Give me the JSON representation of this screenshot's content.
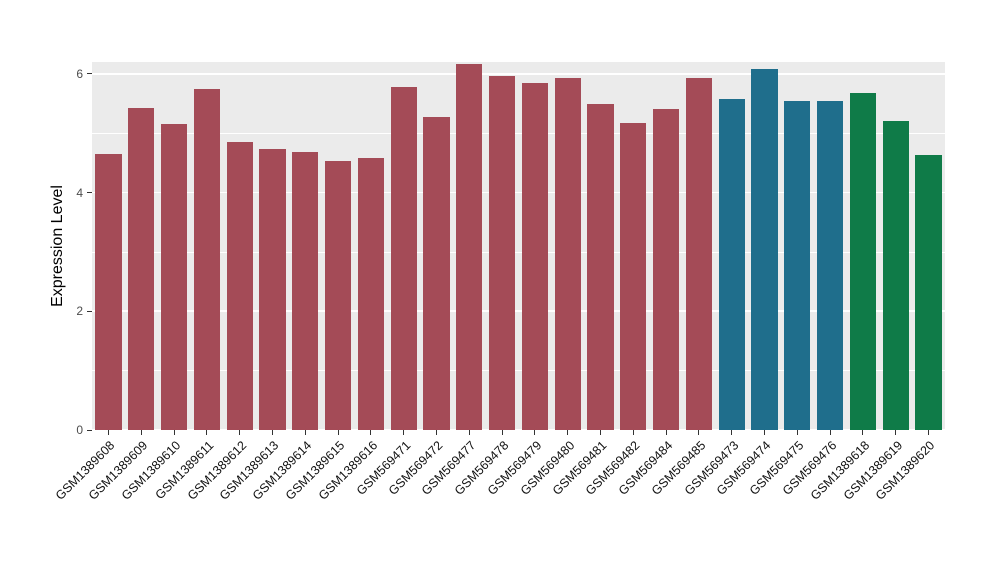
{
  "chart_data": {
    "type": "bar",
    "title": "",
    "xlabel": "",
    "ylabel": "Expression Level",
    "ylim": [
      0,
      6.2
    ],
    "yticks": [
      0,
      2,
      4,
      6
    ],
    "minor_gridlines": [
      1,
      3,
      5
    ],
    "grid": "on",
    "legend": "none",
    "panel_background": "#EBEBEB",
    "grid_color": "#FFFFFF",
    "tick_label_color": "#4D4D4D",
    "axis_title_color": "#000000",
    "x_label_rotation_deg": -45,
    "categories": [
      "GSM1389608",
      "GSM1389609",
      "GSM1389610",
      "GSM1389611",
      "GSM1389612",
      "GSM1389613",
      "GSM1389614",
      "GSM1389615",
      "GSM1389616",
      "GSM569471",
      "GSM569472",
      "GSM569477",
      "GSM569478",
      "GSM569479",
      "GSM569480",
      "GSM569481",
      "GSM569482",
      "GSM569484",
      "GSM569485",
      "GSM569473",
      "GSM569474",
      "GSM569475",
      "GSM569476",
      "GSM1389618",
      "GSM1389619",
      "GSM1389620"
    ],
    "values": [
      4.65,
      5.42,
      5.15,
      5.74,
      4.86,
      4.74,
      4.69,
      4.54,
      4.58,
      5.78,
      5.27,
      6.17,
      5.96,
      5.84,
      5.93,
      5.5,
      5.18,
      5.4,
      5.93,
      5.57,
      6.08,
      5.54,
      5.54,
      5.67,
      5.21,
      4.64
    ],
    "colors": [
      "#A44B57",
      "#A44B57",
      "#A44B57",
      "#A44B57",
      "#A44B57",
      "#A44B57",
      "#A44B57",
      "#A44B57",
      "#A44B57",
      "#A44B57",
      "#A44B57",
      "#A44B57",
      "#A44B57",
      "#A44B57",
      "#A44B57",
      "#A44B57",
      "#A44B57",
      "#A44B57",
      "#A44B57",
      "#1F6E8C",
      "#1F6E8C",
      "#1F6E8C",
      "#1F6E8C",
      "#0F7B48",
      "#0F7B48",
      "#0F7B48"
    ],
    "palette": {
      "group1_red": "#A44B57",
      "group2_teal": "#1F6E8C",
      "group3_green": "#0F7B48"
    }
  }
}
